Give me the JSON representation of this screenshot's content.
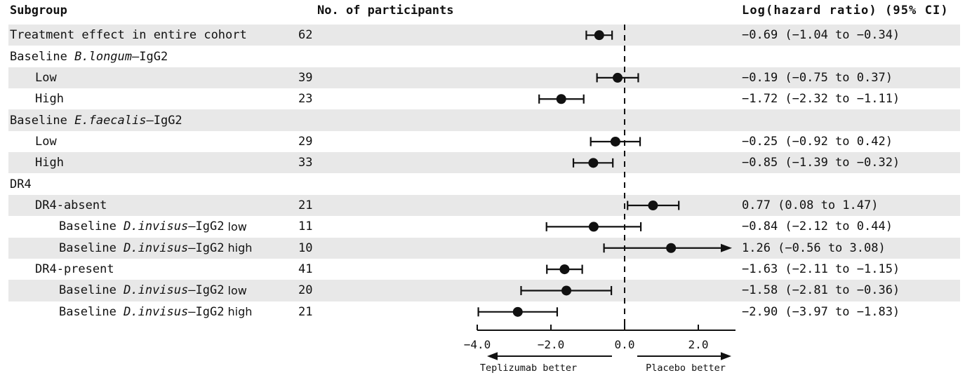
{
  "header": {
    "subgroup": "Subgroup",
    "participants": "No. of participants",
    "hazard_ratio": "Log(hazard ratio) (95% CI)"
  },
  "colors": {
    "ink": "#111111",
    "band": "#e8e8e8",
    "background": "#ffffff"
  },
  "chart_data": {
    "type": "forest",
    "title": "",
    "xlabel": "",
    "xlim": [
      -4.0,
      3.0
    ],
    "reference_line": 0.0,
    "x_ticks": [
      -4.0,
      -2.0,
      0.0,
      2.0
    ],
    "x_tick_labels": [
      "−4.0",
      "−2.0",
      "0.0",
      "2.0"
    ],
    "left_direction_label": "Teplizumab better",
    "right_direction_label": "Placebo better",
    "grid": false,
    "legend": false,
    "rows": [
      {
        "label_parts": [
          {
            "t": "Treatment effect in entire cohort"
          }
        ],
        "indent": 0,
        "participants": "62",
        "estimate": -0.69,
        "ci_lower": -1.04,
        "ci_upper": -0.34,
        "ci_text": "−0.69 (−1.04 to −0.34)",
        "shaded": true,
        "clipped_right": false
      },
      {
        "label_parts": [
          {
            "t": "Baseline "
          },
          {
            "t": "B.longum",
            "italic": true
          },
          {
            "t": "–IgG2"
          }
        ],
        "indent": 0,
        "participants": null,
        "estimate": null,
        "ci_lower": null,
        "ci_upper": null,
        "ci_text": null,
        "shaded": false,
        "clipped_right": false
      },
      {
        "label_parts": [
          {
            "t": "Low"
          }
        ],
        "indent": 1,
        "participants": "39",
        "estimate": -0.19,
        "ci_lower": -0.75,
        "ci_upper": 0.37,
        "ci_text": "−0.19 (−0.75 to 0.37)",
        "shaded": true,
        "clipped_right": false
      },
      {
        "label_parts": [
          {
            "t": "High"
          }
        ],
        "indent": 1,
        "participants": "23",
        "estimate": -1.72,
        "ci_lower": -2.32,
        "ci_upper": -1.11,
        "ci_text": "−1.72 (−2.32 to −1.11)",
        "shaded": false,
        "clipped_right": false
      },
      {
        "label_parts": [
          {
            "t": "Baseline "
          },
          {
            "t": "E.faecalis",
            "italic": true
          },
          {
            "t": "–IgG2"
          }
        ],
        "indent": 0,
        "participants": null,
        "estimate": null,
        "ci_lower": null,
        "ci_upper": null,
        "ci_text": null,
        "shaded": true,
        "clipped_right": false
      },
      {
        "label_parts": [
          {
            "t": "Low"
          }
        ],
        "indent": 1,
        "participants": "29",
        "estimate": -0.25,
        "ci_lower": -0.92,
        "ci_upper": 0.42,
        "ci_text": "−0.25 (−0.92 to 0.42)",
        "shaded": false,
        "clipped_right": false
      },
      {
        "label_parts": [
          {
            "t": "High"
          }
        ],
        "indent": 1,
        "participants": "33",
        "estimate": -0.85,
        "ci_lower": -1.39,
        "ci_upper": -0.32,
        "ci_text": "−0.85 (−1.39 to −0.32)",
        "shaded": true,
        "clipped_right": false
      },
      {
        "label_parts": [
          {
            "t": "DR4"
          }
        ],
        "indent": 0,
        "participants": null,
        "estimate": null,
        "ci_lower": null,
        "ci_upper": null,
        "ci_text": null,
        "shaded": false,
        "clipped_right": false
      },
      {
        "label_parts": [
          {
            "t": "DR4-absent"
          }
        ],
        "indent": 1,
        "participants": "21",
        "estimate": 0.77,
        "ci_lower": 0.08,
        "ci_upper": 1.47,
        "ci_text": "0.77 (0.08 to 1.47)",
        "shaded": true,
        "clipped_right": false
      },
      {
        "label_parts": [
          {
            "t": "Baseline "
          },
          {
            "t": "D.invisus",
            "italic": true
          },
          {
            "t": "–IgG2"
          },
          {
            "t": " low",
            "sans": true
          }
        ],
        "indent": 2,
        "participants": "11",
        "estimate": -0.84,
        "ci_lower": -2.12,
        "ci_upper": 0.44,
        "ci_text": "−0.84 (−2.12 to 0.44)",
        "shaded": false,
        "clipped_right": false
      },
      {
        "label_parts": [
          {
            "t": "Baseline "
          },
          {
            "t": "D.invisus",
            "italic": true
          },
          {
            "t": "–IgG2"
          },
          {
            "t": " high",
            "sans": true
          }
        ],
        "indent": 2,
        "participants": "10",
        "estimate": 1.26,
        "ci_lower": -0.56,
        "ci_upper": 3.08,
        "ci_text": "1.26 (−0.56 to 3.08)",
        "shaded": true,
        "clipped_right": true
      },
      {
        "label_parts": [
          {
            "t": "DR4-present"
          }
        ],
        "indent": 1,
        "participants": "41",
        "estimate": -1.63,
        "ci_lower": -2.11,
        "ci_upper": -1.15,
        "ci_text": "−1.63 (−2.11 to −1.15)",
        "shaded": false,
        "clipped_right": false
      },
      {
        "label_parts": [
          {
            "t": "Baseline "
          },
          {
            "t": "D.invisus",
            "italic": true
          },
          {
            "t": "–IgG2"
          },
          {
            "t": " low",
            "sans": true
          }
        ],
        "indent": 2,
        "participants": "20",
        "estimate": -1.58,
        "ci_lower": -2.81,
        "ci_upper": -0.36,
        "ci_text": "−1.58 (−2.81 to −0.36)",
        "shaded": true,
        "clipped_right": false
      },
      {
        "label_parts": [
          {
            "t": "Baseline "
          },
          {
            "t": "D.invisus",
            "italic": true
          },
          {
            "t": "–IgG2"
          },
          {
            "t": " high",
            "sans": true
          }
        ],
        "indent": 2,
        "participants": "21",
        "estimate": -2.9,
        "ci_lower": -3.97,
        "ci_upper": -1.83,
        "ci_text": "−2.90 (−3.97 to −1.83)",
        "shaded": false,
        "clipped_right": false
      }
    ]
  }
}
